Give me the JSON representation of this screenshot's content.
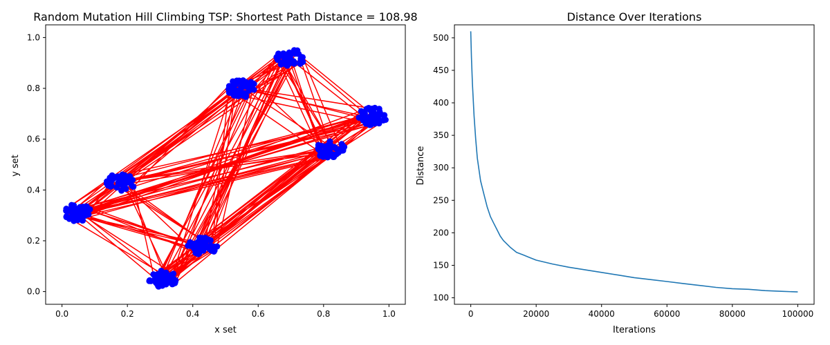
{
  "chart_data": [
    {
      "type": "scatter",
      "title": "Random Mutation Hill Climbing TSP: Shortest Path Distance = 108.98",
      "xlabel": "x set",
      "ylabel": "y set",
      "xlim": [
        -0.05,
        1.05
      ],
      "ylim": [
        -0.05,
        1.05
      ],
      "xticks": [
        0.0,
        0.2,
        0.4,
        0.6,
        0.8,
        1.0
      ],
      "xtick_labels": [
        "0.0",
        "0.2",
        "0.4",
        "0.6",
        "0.8",
        "1.0"
      ],
      "yticks": [
        0.0,
        0.2,
        0.4,
        0.6,
        0.8,
        1.0
      ],
      "ytick_labels": [
        "0.0",
        "0.2",
        "0.4",
        "0.6",
        "0.8",
        "1.0"
      ],
      "grid": false,
      "point_color": "#0000ff",
      "path_color": "#ff0000",
      "clusters": [
        {
          "center": [
            0.7,
            0.92
          ],
          "spread": [
            0.045,
            0.035
          ]
        },
        {
          "center": [
            0.55,
            0.8
          ],
          "spread": [
            0.045,
            0.035
          ]
        },
        {
          "center": [
            0.95,
            0.69
          ],
          "spread": [
            0.045,
            0.035
          ]
        },
        {
          "center": [
            0.82,
            0.56
          ],
          "spread": [
            0.045,
            0.035
          ]
        },
        {
          "center": [
            0.18,
            0.43
          ],
          "spread": [
            0.045,
            0.035
          ]
        },
        {
          "center": [
            0.05,
            0.31
          ],
          "spread": [
            0.045,
            0.035
          ]
        },
        {
          "center": [
            0.43,
            0.18
          ],
          "spread": [
            0.045,
            0.035
          ]
        },
        {
          "center": [
            0.31,
            0.05
          ],
          "spread": [
            0.045,
            0.035
          ]
        }
      ]
    },
    {
      "type": "line",
      "title": "Distance Over Iterations",
      "xlabel": "Iterations",
      "ylabel": "Distance",
      "xlim": [
        -5000,
        105000
      ],
      "ylim": [
        90,
        520
      ],
      "xticks": [
        0,
        20000,
        40000,
        60000,
        80000,
        100000
      ],
      "xtick_labels": [
        "0",
        "20000",
        "40000",
        "60000",
        "80000",
        "100000"
      ],
      "yticks": [
        100,
        150,
        200,
        250,
        300,
        350,
        400,
        450,
        500
      ],
      "ytick_labels": [
        "100",
        "150",
        "200",
        "250",
        "300",
        "350",
        "400",
        "450",
        "500"
      ],
      "grid": false,
      "line_color": "#1f77b4",
      "x": [
        0,
        200,
        500,
        1000,
        1500,
        2000,
        3000,
        4000,
        5000,
        6000,
        7000,
        8000,
        9000,
        10000,
        12000,
        14000,
        16000,
        18000,
        20000,
        25000,
        30000,
        35000,
        40000,
        45000,
        50000,
        55000,
        60000,
        65000,
        70000,
        75000,
        80000,
        85000,
        90000,
        95000,
        100000
      ],
      "y": [
        510,
        470,
        430,
        380,
        345,
        315,
        280,
        260,
        240,
        225,
        215,
        205,
        195,
        188,
        178,
        170,
        166,
        162,
        158,
        152,
        147,
        143,
        139,
        135,
        131,
        128,
        125,
        122,
        119,
        116,
        114,
        113,
        111,
        110,
        109
      ]
    }
  ]
}
